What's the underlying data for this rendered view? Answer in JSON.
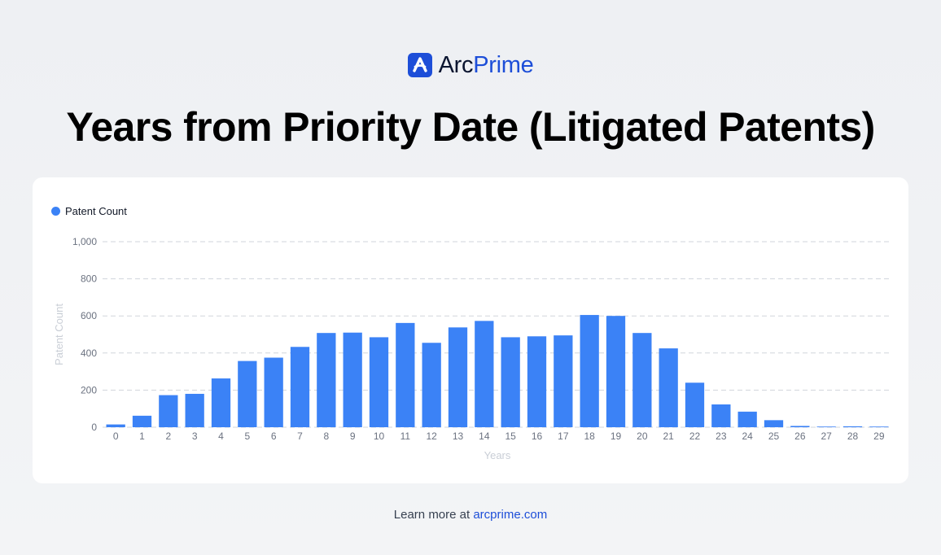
{
  "brand": {
    "name_part1": "Arc",
    "name_part2": "Prime"
  },
  "footer": {
    "text": "Learn more at ",
    "link": "arcprime.com"
  },
  "colors": {
    "bar": "#3b82f6",
    "brand_blue": "#1d4ed8",
    "grid": "#d1d5db",
    "tick": "#6b7280",
    "axis_label": "#c9ced6"
  },
  "chart_data": {
    "type": "bar",
    "title": "Years from Priority Date (Litigated Patents)",
    "xlabel": "Years",
    "ylabel": "Patent Count",
    "legend_position": "top-left",
    "grid": true,
    "ylim": [
      0,
      1000
    ],
    "yticks": [
      "0",
      "200",
      "400",
      "600",
      "800",
      "1,000"
    ],
    "ytick_values": [
      0,
      200,
      400,
      600,
      800,
      1000
    ],
    "categories": [
      "0",
      "1",
      "2",
      "3",
      "4",
      "5",
      "6",
      "7",
      "8",
      "9",
      "10",
      "11",
      "12",
      "13",
      "14",
      "15",
      "16",
      "17",
      "18",
      "19",
      "20",
      "21",
      "22",
      "23",
      "24",
      "25",
      "26",
      "27",
      "28",
      "29"
    ],
    "series": [
      {
        "name": "Patent Count",
        "color": "#3b82f6",
        "values": [
          15,
          62,
          173,
          180,
          263,
          357,
          375,
          433,
          508,
          510,
          485,
          562,
          455,
          538,
          573,
          485,
          490,
          495,
          605,
          600,
          508,
          425,
          240,
          123,
          84,
          38,
          7,
          3,
          5,
          1
        ]
      }
    ]
  }
}
